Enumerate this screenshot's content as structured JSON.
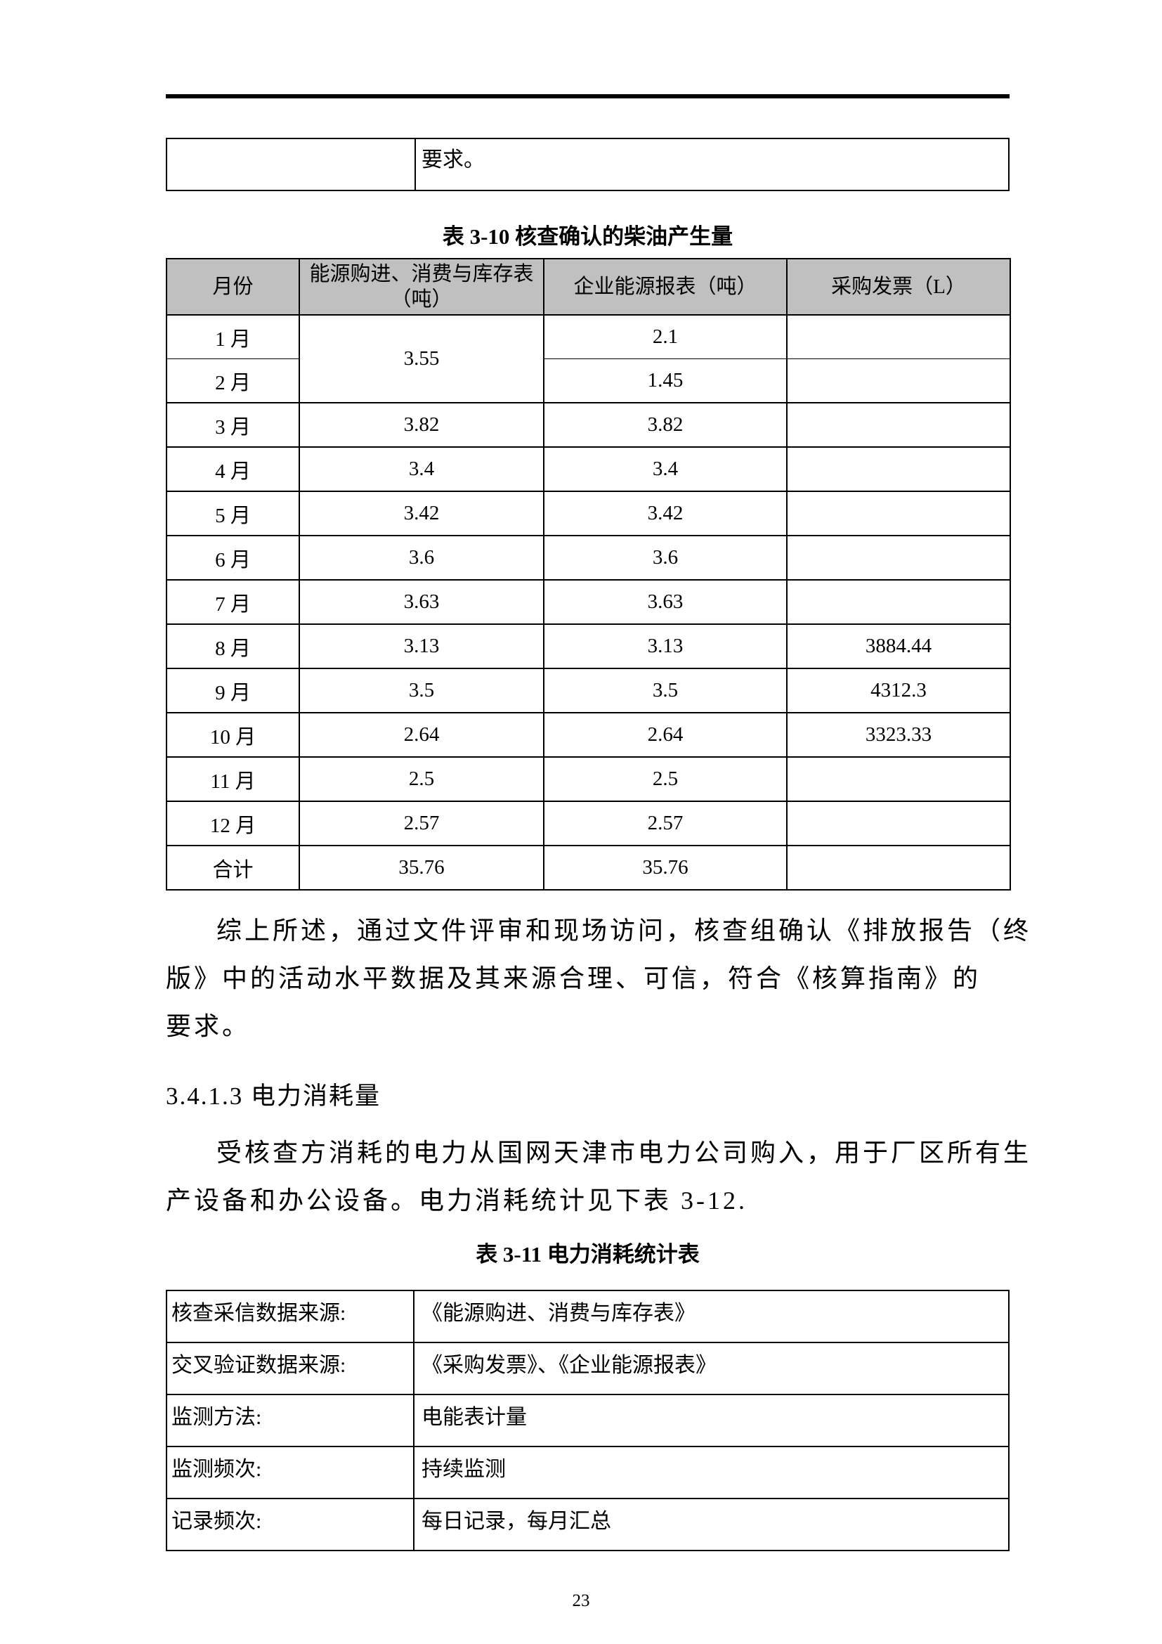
{
  "page": {
    "number": "23"
  },
  "fragment_table": {
    "cell_text": "要求。"
  },
  "diesel_table": {
    "title": "表 3-10 核查确认的柴油产生量",
    "headers": [
      "月份",
      "能源购进、消费与库存表\n（吨）",
      "企业能源报表（吨）",
      "采购发票（L）"
    ],
    "rows": [
      {
        "month": "1 月",
        "purchase": "3.55",
        "purchase_rowspan": 2,
        "report": "2.1",
        "invoice": ""
      },
      {
        "month": "2 月",
        "report": "1.45",
        "invoice": ""
      },
      {
        "month": "3 月",
        "purchase": "3.82",
        "report": "3.82",
        "invoice": ""
      },
      {
        "month": "4 月",
        "purchase": "3.4",
        "report": "3.4",
        "invoice": ""
      },
      {
        "month": "5 月",
        "purchase": "3.42",
        "report": "3.42",
        "invoice": ""
      },
      {
        "month": "6 月",
        "purchase": "3.6",
        "report": "3.6",
        "invoice": ""
      },
      {
        "month": "7 月",
        "purchase": "3.63",
        "report": "3.63",
        "invoice": ""
      },
      {
        "month": "8 月",
        "purchase": "3.13",
        "report": "3.13",
        "invoice": "3884.44"
      },
      {
        "month": "9 月",
        "purchase": "3.5",
        "report": "3.5",
        "invoice": "4312.3"
      },
      {
        "month": "10 月",
        "purchase": "2.64",
        "report": "2.64",
        "invoice": "3323.33"
      },
      {
        "month": "11 月",
        "purchase": "2.5",
        "report": "2.5",
        "invoice": ""
      },
      {
        "month": "12 月",
        "purchase": "2.57",
        "report": "2.57",
        "invoice": ""
      },
      {
        "month": "合计",
        "purchase": "35.76",
        "report": "35.76",
        "invoice": ""
      }
    ]
  },
  "paragraph_summary": {
    "lines": [
      "综上所述，通过文件评审和现场访问，核查组确认《排放报告（终",
      "版》中的活动水平数据及其来源合理、可信，符合《核算指南》的",
      "要求。"
    ]
  },
  "section_heading": "3.4.1.3 电力消耗量",
  "paragraph_electric": {
    "lines": [
      "受核查方消耗的电力从国网天津市电力公司购入，用于厂区所有生",
      "产设备和办公设备。电力消耗统计见下表 3-12."
    ]
  },
  "electric_table": {
    "title": "表 3-11 电力消耗统计表",
    "rows": [
      {
        "label": "核查采信数据来源:",
        "value": "《能源购进、消费与库存表》"
      },
      {
        "label": "交叉验证数据来源:",
        "value": "《采购发票》、《企业能源报表》"
      },
      {
        "label": "监测方法:",
        "value": "电能表计量"
      },
      {
        "label": "监测频次:",
        "value": "持续监测"
      },
      {
        "label": "记录频次:",
        "value": "每日记录，每月汇总"
      }
    ]
  }
}
